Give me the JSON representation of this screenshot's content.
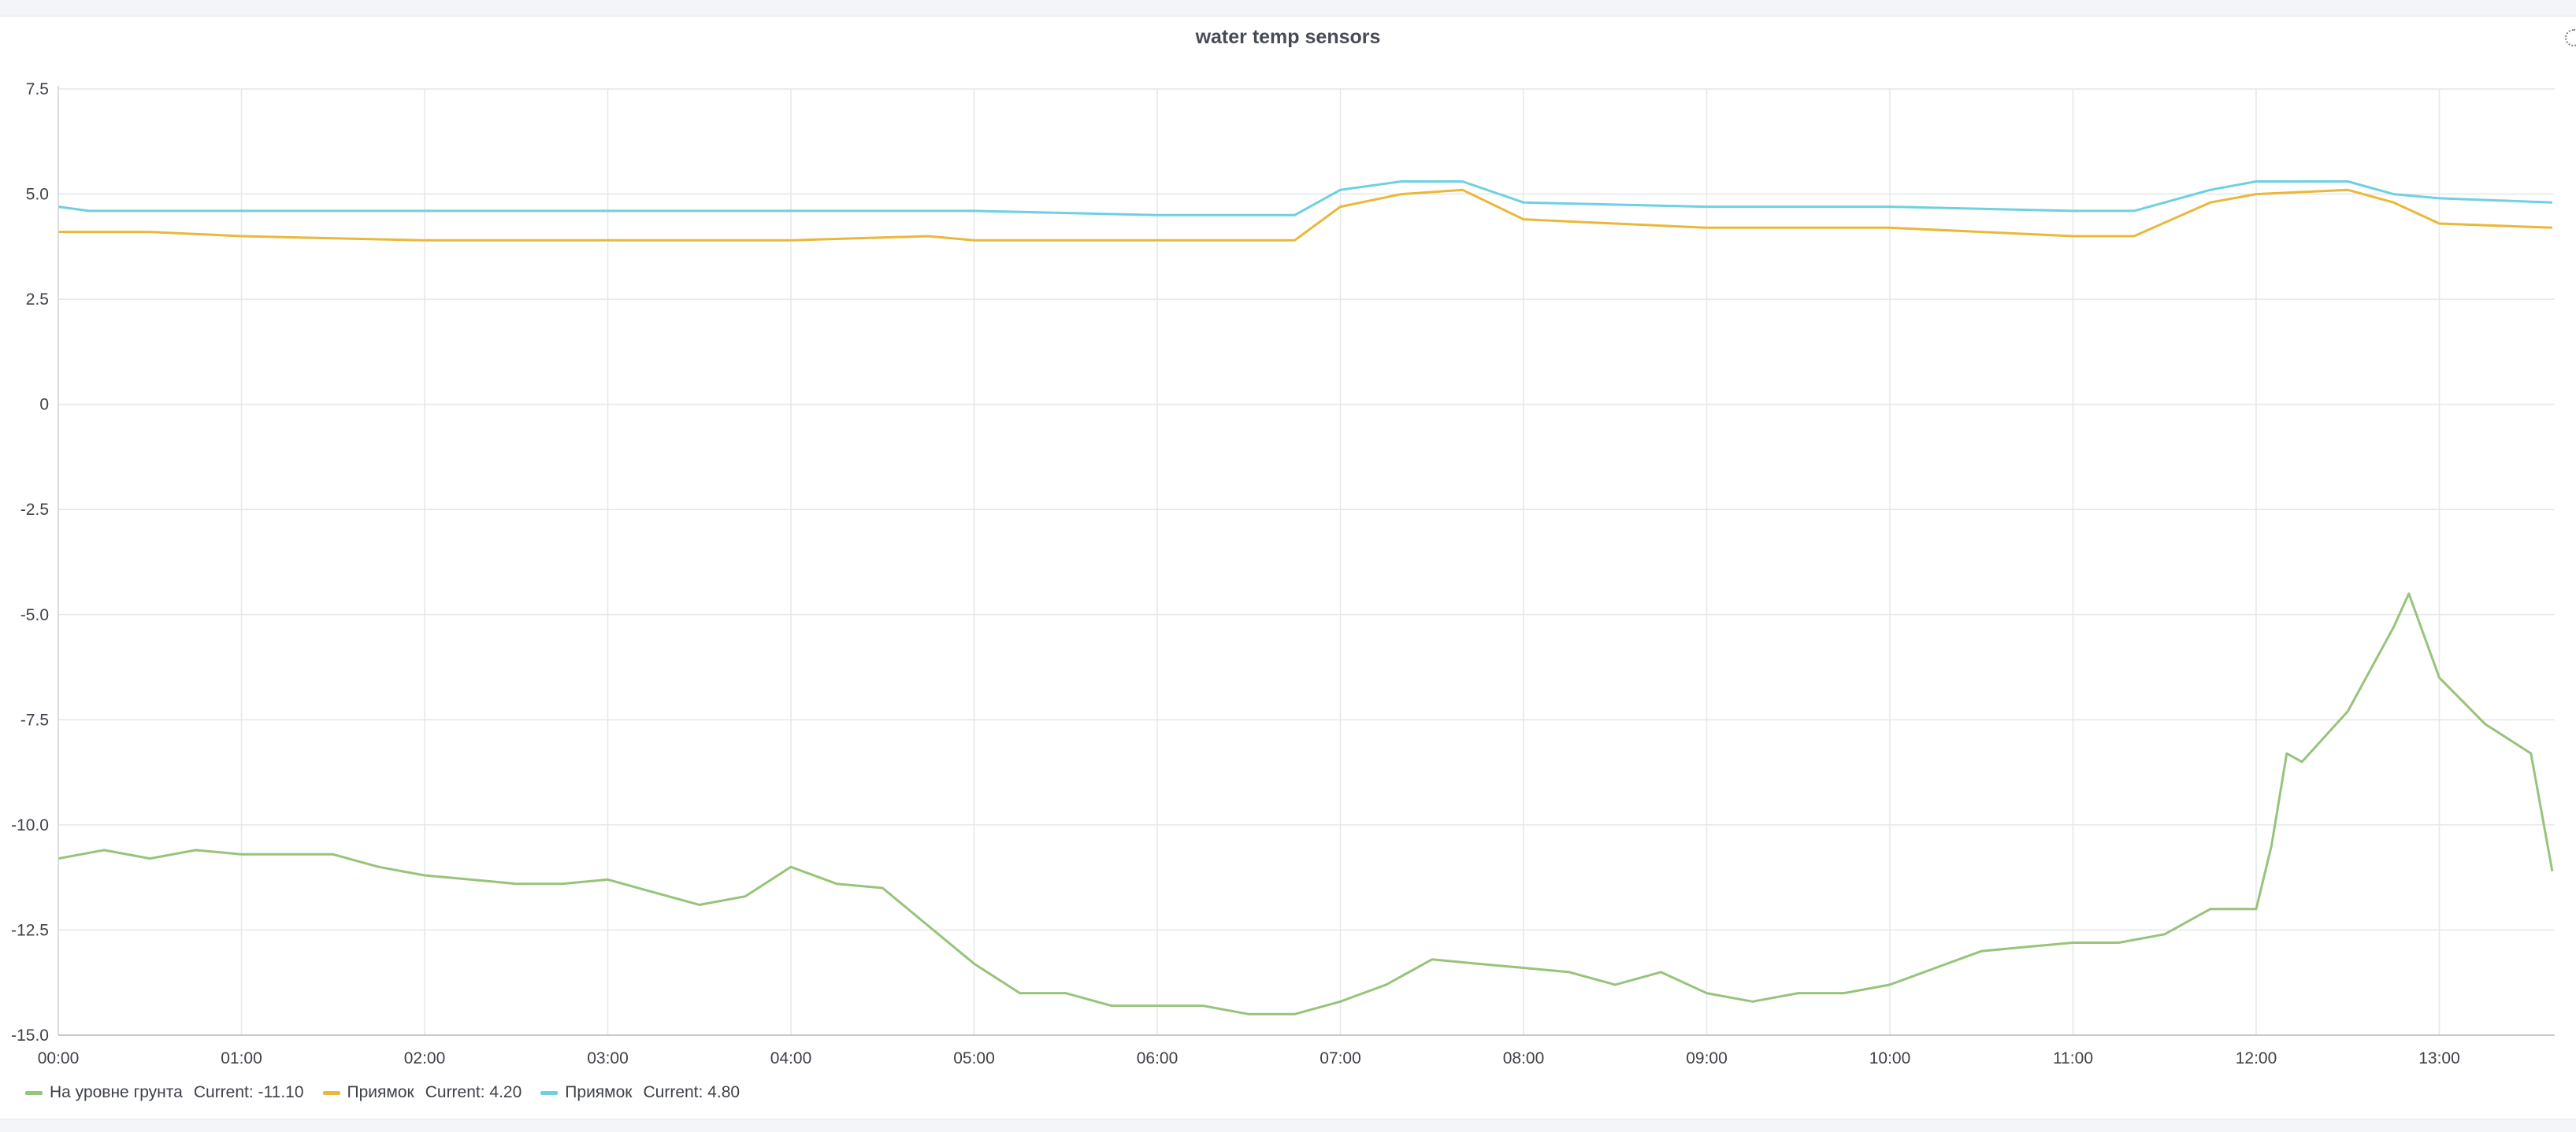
{
  "panel": {
    "title": "water temp sensors"
  },
  "chart_data": {
    "type": "line",
    "title": "water temp sensors",
    "xlabel": "",
    "ylabel": "",
    "xlim": [
      "00:00",
      "13:37"
    ],
    "ylim": [
      -15,
      7.5
    ],
    "grid": true,
    "legend_position": "bottom-left",
    "x_ticks": [
      "00:00",
      "01:00",
      "02:00",
      "03:00",
      "04:00",
      "05:00",
      "06:00",
      "07:00",
      "08:00",
      "09:00",
      "10:00",
      "11:00",
      "12:00",
      "13:00"
    ],
    "y_ticks": [
      "7.5",
      "5.0",
      "2.5",
      "0",
      "-2.5",
      "-5.0",
      "-7.5",
      "-10.0",
      "-12.5",
      "-15.0"
    ],
    "series": [
      {
        "name": "На уровне грунта",
        "color": "#96c47a",
        "current_label": "Current: -11.10",
        "x": [
          "00:00",
          "00:15",
          "00:30",
          "00:45",
          "01:00",
          "01:15",
          "01:30",
          "01:45",
          "02:00",
          "02:15",
          "02:30",
          "02:45",
          "03:00",
          "03:15",
          "03:30",
          "03:45",
          "04:00",
          "04:15",
          "04:30",
          "04:45",
          "05:00",
          "05:15",
          "05:30",
          "05:45",
          "06:00",
          "06:15",
          "06:30",
          "06:45",
          "07:00",
          "07:15",
          "07:30",
          "07:45",
          "08:00",
          "08:15",
          "08:30",
          "08:45",
          "09:00",
          "09:15",
          "09:30",
          "09:45",
          "10:00",
          "10:15",
          "10:30",
          "10:45",
          "11:00",
          "11:15",
          "11:30",
          "11:45",
          "12:00",
          "12:05",
          "12:10",
          "12:15",
          "12:30",
          "12:45",
          "12:50",
          "13:00",
          "13:15",
          "13:30",
          "13:37"
        ],
        "values": [
          -10.8,
          -10.6,
          -10.8,
          -10.6,
          -10.7,
          -10.7,
          -10.7,
          -11.0,
          -11.2,
          -11.3,
          -11.4,
          -11.4,
          -11.3,
          -11.6,
          -11.9,
          -11.7,
          -11.0,
          -11.4,
          -11.5,
          -12.4,
          -13.3,
          -14.0,
          -14.0,
          -14.3,
          -14.3,
          -14.3,
          -14.5,
          -14.5,
          -14.2,
          -13.8,
          -13.2,
          -13.3,
          -13.4,
          -13.5,
          -13.8,
          -13.5,
          -14.0,
          -14.2,
          -14.0,
          -14.0,
          -13.8,
          -13.4,
          -13.0,
          -12.9,
          -12.8,
          -12.8,
          -12.6,
          -12.0,
          -12.0,
          -10.5,
          -8.3,
          -8.5,
          -7.3,
          -5.3,
          -4.5,
          -6.5,
          -7.6,
          -8.3,
          -11.1
        ]
      },
      {
        "name": "Приямок",
        "color": "#eab839",
        "current_label": "Current: 4.20",
        "x": [
          "00:00",
          "00:30",
          "01:00",
          "02:00",
          "03:00",
          "04:00",
          "04:45",
          "05:00",
          "06:00",
          "06:45",
          "07:00",
          "07:20",
          "07:40",
          "08:00",
          "08:30",
          "09:00",
          "10:00",
          "10:30",
          "11:00",
          "11:20",
          "11:45",
          "12:00",
          "12:30",
          "12:45",
          "13:00",
          "13:37"
        ],
        "values": [
          4.1,
          4.1,
          4.0,
          3.9,
          3.9,
          3.9,
          4.0,
          3.9,
          3.9,
          3.9,
          4.7,
          5.0,
          5.1,
          4.4,
          4.3,
          4.2,
          4.2,
          4.1,
          4.0,
          4.0,
          4.8,
          5.0,
          5.1,
          4.8,
          4.3,
          4.2
        ]
      },
      {
        "name": "Приямок",
        "color": "#6ed0e0",
        "current_label": "Current: 4.80",
        "x": [
          "00:00",
          "00:10",
          "01:00",
          "02:00",
          "03:00",
          "04:00",
          "05:00",
          "06:00",
          "06:45",
          "07:00",
          "07:20",
          "07:40",
          "08:00",
          "09:00",
          "10:00",
          "11:00",
          "11:20",
          "11:45",
          "12:00",
          "12:30",
          "12:45",
          "13:00",
          "13:37"
        ],
        "values": [
          4.7,
          4.6,
          4.6,
          4.6,
          4.6,
          4.6,
          4.6,
          4.5,
          4.5,
          5.1,
          5.3,
          5.3,
          4.8,
          4.7,
          4.7,
          4.6,
          4.6,
          5.1,
          5.3,
          5.3,
          5.0,
          4.9,
          4.8
        ]
      }
    ]
  }
}
